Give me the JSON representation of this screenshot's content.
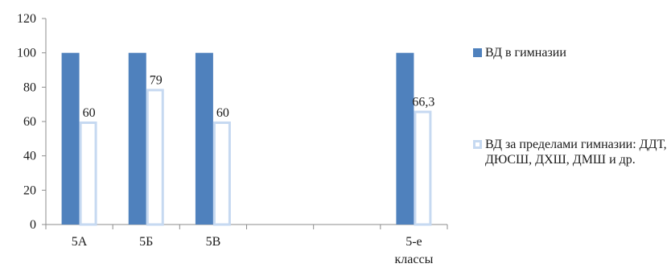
{
  "chart_data": {
    "type": "bar",
    "categories": [
      "5А",
      "5Б",
      "5В",
      "",
      "",
      "5-е классы"
    ],
    "series": [
      {
        "name": "ВД в гимназии",
        "values": [
          100,
          100,
          100,
          null,
          null,
          100
        ],
        "labels": [
          "",
          "",
          "",
          "",
          "",
          ""
        ]
      },
      {
        "name": "ВД за пределами гимназии: ДДТ, ДЮСШ, ДХШ, ДМШ и др.",
        "values": [
          60,
          79,
          60,
          null,
          null,
          66.3
        ],
        "labels": [
          "60",
          "79",
          "60",
          "",
          "",
          "66,3"
        ]
      }
    ],
    "yticks": [
      "0",
      "20",
      "40",
      "60",
      "80",
      "100",
      "120"
    ],
    "ylim": [
      0,
      120
    ],
    "legend_position": "right",
    "grid": false,
    "colors": {
      "series1_fill": "#4f81bd",
      "series2_fill": "#ffffff",
      "series2_stroke": "#c6d9f1",
      "axis": "#8c8c8c"
    }
  }
}
